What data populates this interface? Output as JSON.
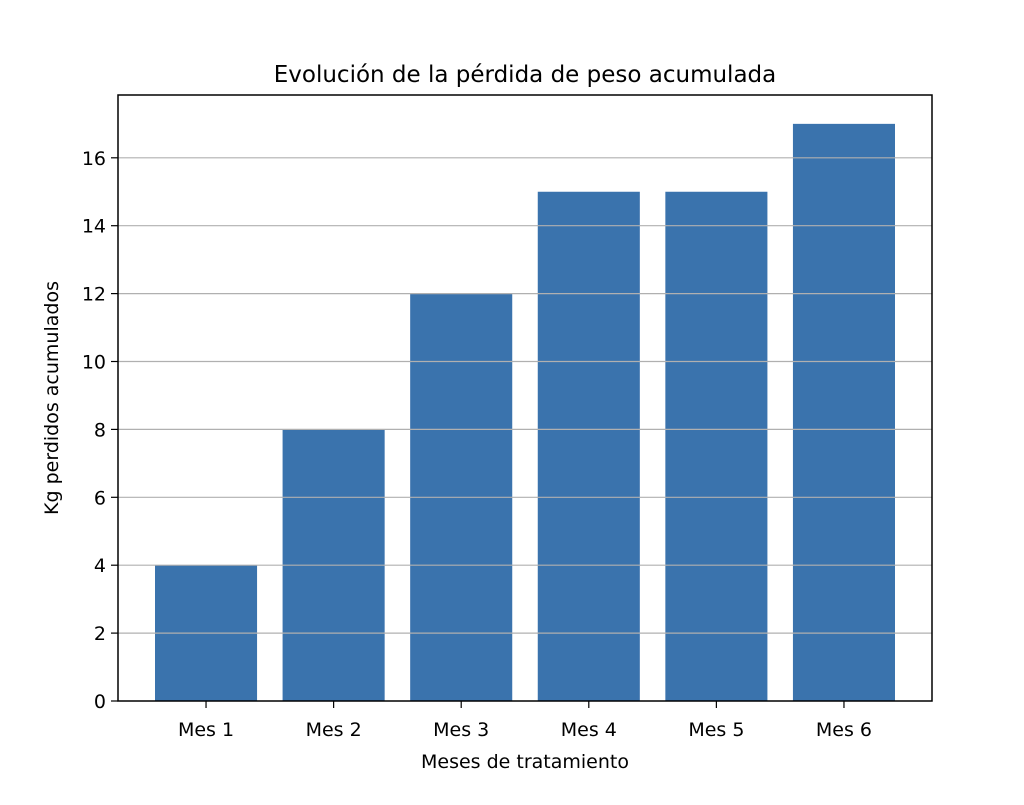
{
  "chart_data": {
    "type": "bar",
    "title": "Evolución de la pérdida de peso acumulada",
    "xlabel": "Meses de tratamiento",
    "ylabel": "Kg perdidos acumulados",
    "categories": [
      "Mes 1",
      "Mes 2",
      "Mes 3",
      "Mes 4",
      "Mes 5",
      "Mes 6"
    ],
    "values": [
      4,
      8,
      12,
      15,
      15,
      17
    ],
    "ylim": [
      0,
      17.85
    ],
    "yticks": [
      0,
      2,
      4,
      6,
      8,
      10,
      12,
      14,
      16
    ],
    "grid": "y",
    "bar_color": "#3a73ad",
    "grid_color": "#b0b0b0"
  }
}
